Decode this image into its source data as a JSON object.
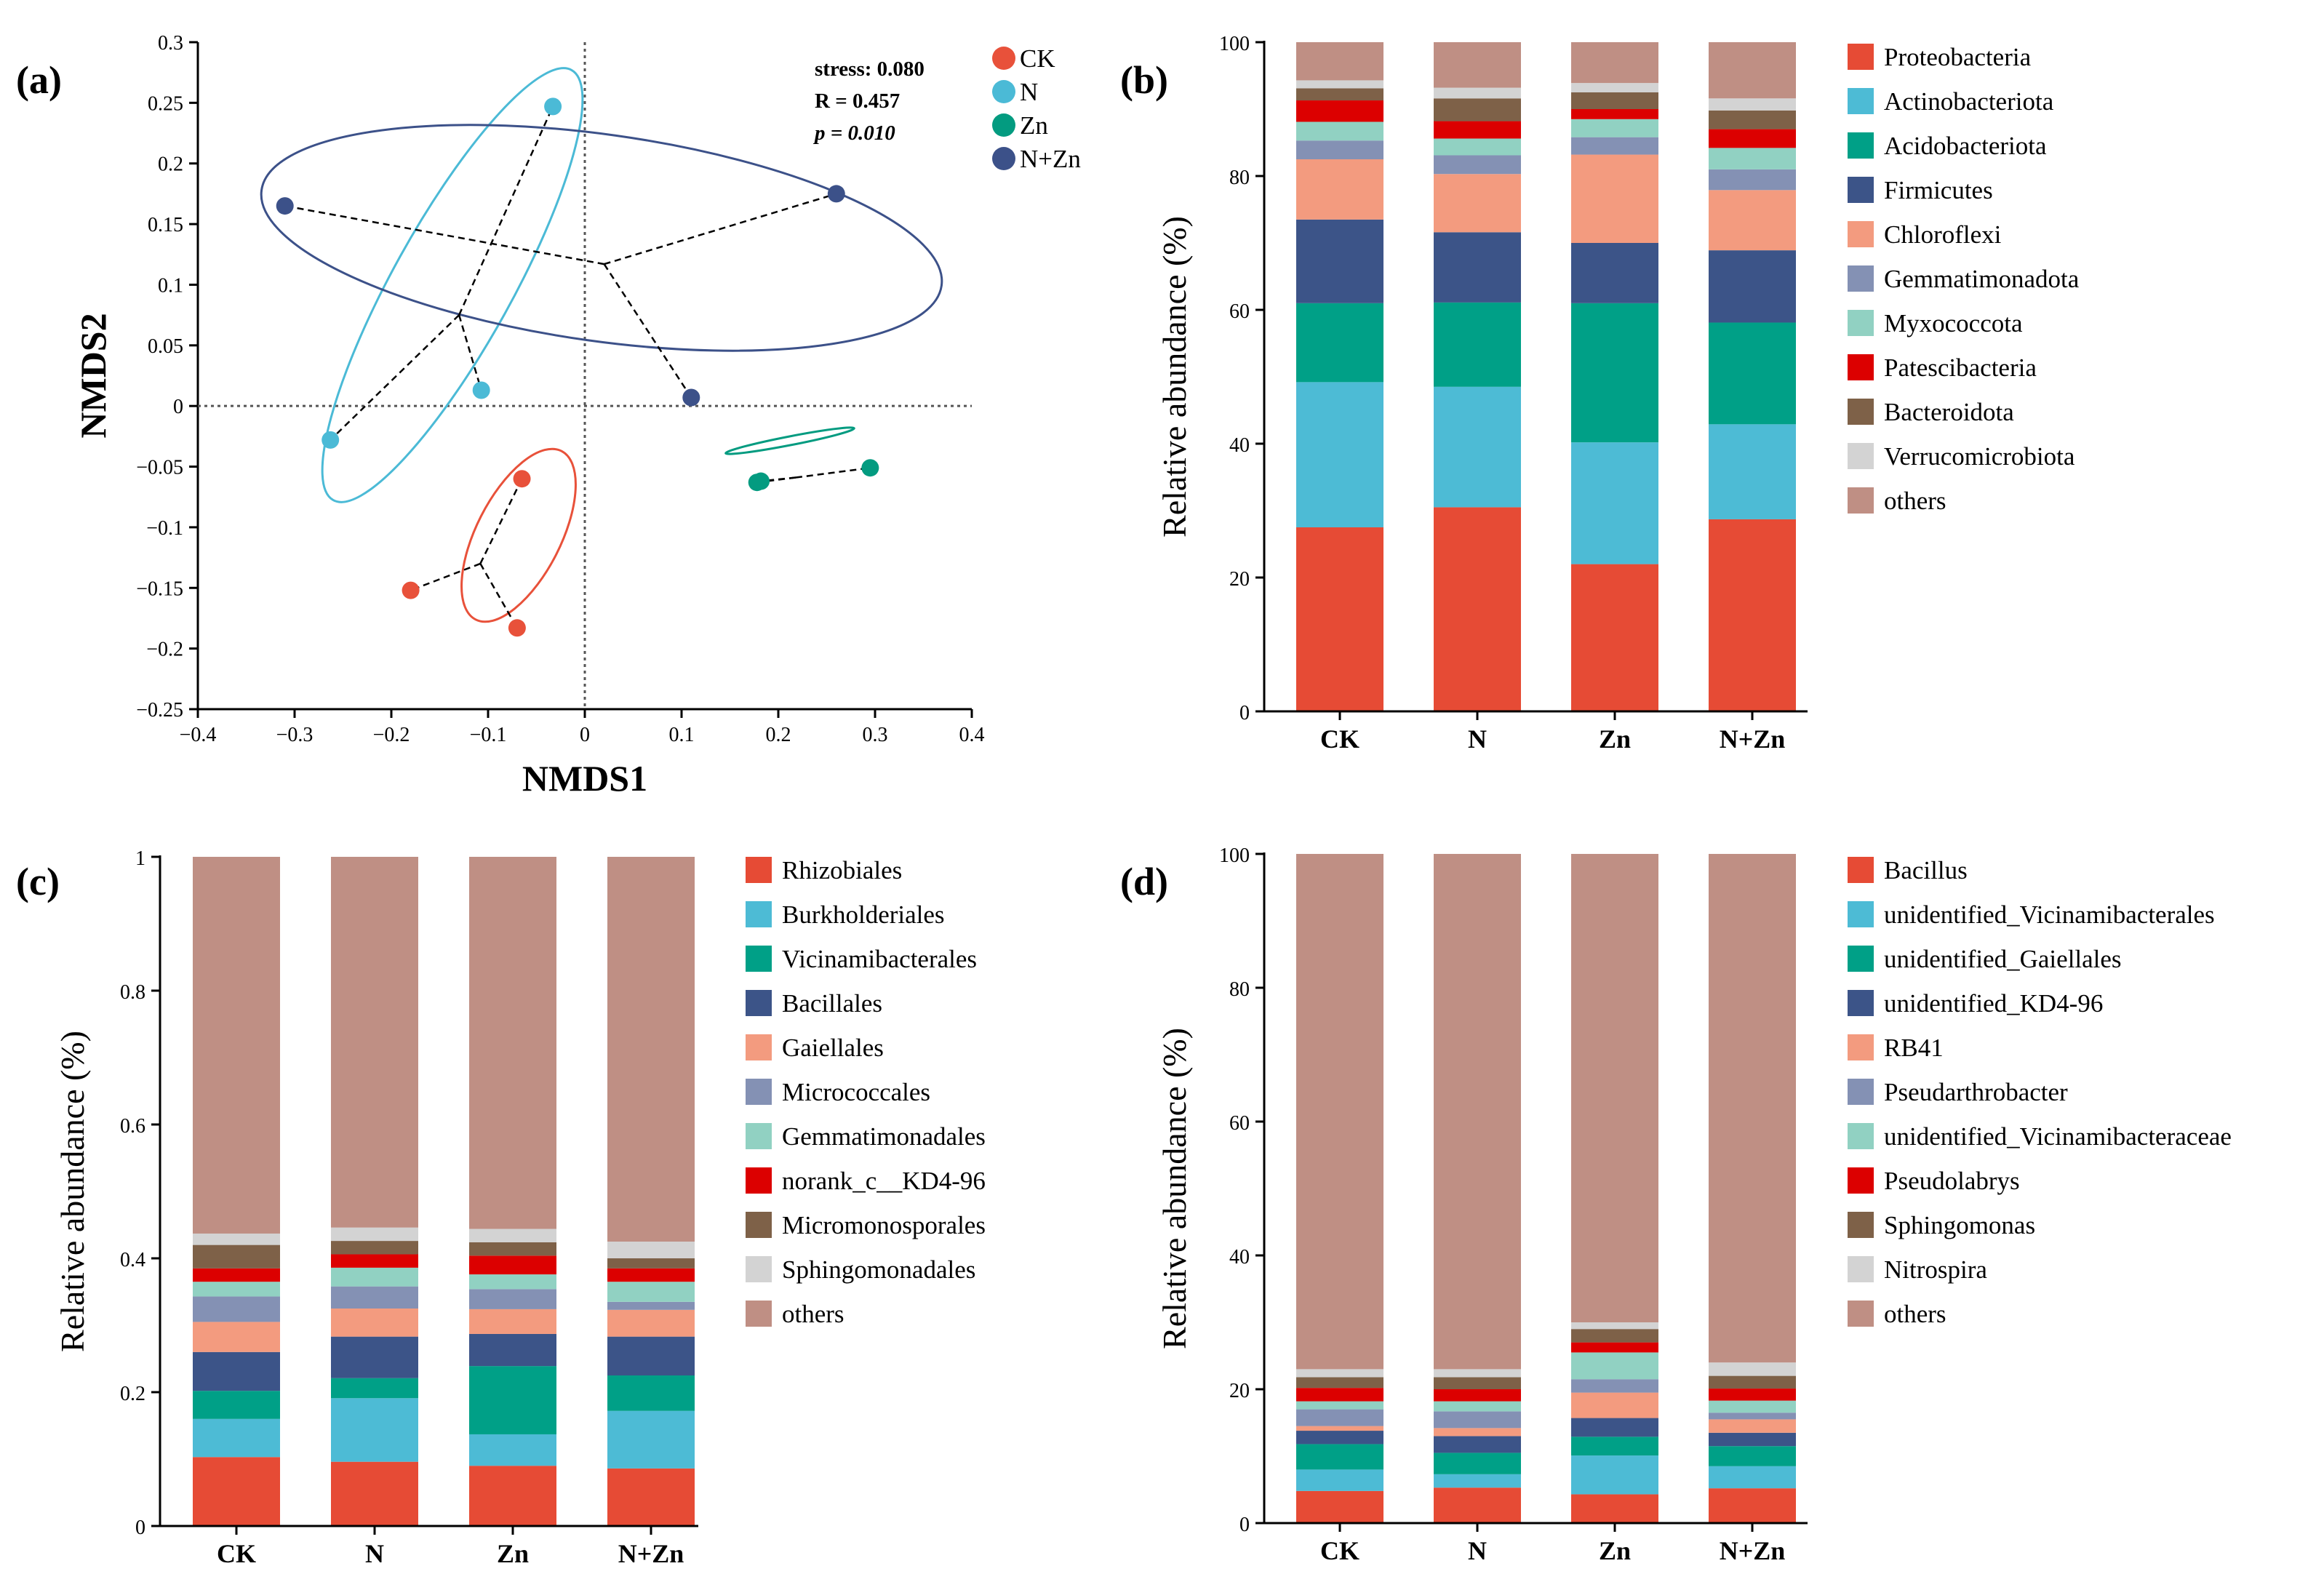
{
  "chart_data": [
    {
      "panel": "(a)",
      "type": "scatter",
      "xlabel": "NMDS1",
      "ylabel": "NMDS2",
      "xlim": [
        -0.4,
        0.4
      ],
      "ylim": [
        -0.25,
        0.3
      ],
      "xticks": [
        "−0.4",
        "−0.3",
        "−0.2",
        "−0.1",
        "0",
        "0.1",
        "0.2",
        "0.3",
        "0.4"
      ],
      "xtick_values": [
        -0.4,
        -0.3,
        -0.2,
        -0.1,
        0,
        0.1,
        0.2,
        0.3,
        0.4
      ],
      "yticks": [
        "0.3",
        "0.25",
        "0.2",
        "0.15",
        "0.1",
        "0.05",
        "0",
        "−0.05",
        "−0.1",
        "−0.15",
        "−0.2",
        "−0.25"
      ],
      "ytick_values": [
        0.3,
        0.25,
        0.2,
        0.15,
        0.1,
        0.05,
        0,
        -0.05,
        -0.1,
        -0.15,
        -0.2,
        -0.25
      ],
      "annotations": [
        "stress: 0.080",
        "R = 0.457",
        "p = 0.010"
      ],
      "series": [
        {
          "name": "CK",
          "color": "#e8513a",
          "points": [
            [
              -0.065,
              -0.06
            ],
            [
              -0.18,
              -0.152
            ],
            [
              -0.07,
              -0.183
            ]
          ],
          "centroid": [
            -0.108,
            -0.13
          ]
        },
        {
          "name": "N",
          "color": "#4bbad6",
          "points": [
            [
              -0.033,
              0.247
            ],
            [
              -0.107,
              0.013
            ],
            [
              -0.263,
              -0.028
            ]
          ],
          "centroid": [
            -0.13,
            0.075
          ]
        },
        {
          "name": "Zn",
          "color": "#039b80",
          "points": [
            [
              0.295,
              -0.051
            ],
            [
              0.178,
              -0.063
            ],
            [
              0.182,
              -0.062
            ]
          ],
          "centroid": [
            0.218,
            -0.059
          ]
        },
        {
          "name": "N+Zn",
          "color": "#3c5189",
          "points": [
            [
              -0.31,
              0.165
            ],
            [
              0.26,
              0.175
            ],
            [
              0.11,
              0.007
            ]
          ],
          "centroid": [
            0.02,
            0.117
          ]
        }
      ]
    },
    {
      "panel": "(b)",
      "type": "bar",
      "stacked": true,
      "ylabel": "Relative abundance (%)",
      "ylim": [
        0,
        100
      ],
      "yticks": [
        "0",
        "20",
        "40",
        "60",
        "80",
        "100"
      ],
      "ytick_values": [
        0,
        20,
        40,
        60,
        80,
        100
      ],
      "categories": [
        "CK",
        "N",
        "Zn",
        "N+Zn"
      ],
      "series": [
        {
          "name": "Proteobacteria",
          "color": "#e64b35",
          "values": [
            27.5,
            30.5,
            22,
            28.7
          ]
        },
        {
          "name": "Actinobacteriota",
          "color": "#4dbbd5",
          "values": [
            21.7,
            18,
            18.2,
            14.2
          ]
        },
        {
          "name": "Acidobacteriota",
          "color": "#00a087",
          "values": [
            11.8,
            12.6,
            20.8,
            15.2
          ]
        },
        {
          "name": "Firmicutes",
          "color": "#3c5488",
          "values": [
            12.5,
            10.5,
            9,
            10.8
          ]
        },
        {
          "name": "Chloroflexi",
          "color": "#f39b7f",
          "values": [
            9,
            8.7,
            13.2,
            9
          ]
        },
        {
          "name": "Gemmatimonadota",
          "color": "#8491b4",
          "values": [
            2.8,
            2.8,
            2.6,
            3.1
          ]
        },
        {
          "name": "Myxococcota",
          "color": "#91d1c2",
          "values": [
            2.8,
            2.5,
            2.7,
            3.2
          ]
        },
        {
          "name": "Patescibacteria",
          "color": "#dc0000",
          "values": [
            3.2,
            2.6,
            1.5,
            2.8
          ]
        },
        {
          "name": "Bacteroidota",
          "color": "#7e6148",
          "values": [
            1.8,
            3.4,
            2.5,
            2.8
          ]
        },
        {
          "name": "Verrucomicrobiota",
          "color": "#d3d3d3",
          "values": [
            1.2,
            1.6,
            1.4,
            1.8
          ]
        },
        {
          "name": "others",
          "color": "#bf8f84",
          "values": [
            5.7,
            6.8,
            6.1,
            8.4
          ]
        }
      ]
    },
    {
      "panel": "(c)",
      "type": "bar",
      "stacked": true,
      "ylabel": "Relative abundance (%)",
      "ylim": [
        0,
        1
      ],
      "yticks": [
        "0",
        "0.2",
        "0.4",
        "0.6",
        "0.8",
        "1"
      ],
      "ytick_values": [
        0,
        0.2,
        0.4,
        0.6,
        0.8,
        1
      ],
      "categories": [
        "CK",
        "N",
        "Zn",
        "N+Zn"
      ],
      "series": [
        {
          "name": "Rhizobiales",
          "color": "#e64b35",
          "values": [
            0.103,
            0.096,
            0.09,
            0.086
          ]
        },
        {
          "name": "Burkholderiales",
          "color": "#4dbbd5",
          "values": [
            0.057,
            0.095,
            0.047,
            0.086
          ]
        },
        {
          "name": "Vicinamibacterales",
          "color": "#00a087",
          "values": [
            0.042,
            0.03,
            0.102,
            0.053
          ]
        },
        {
          "name": "Bacillales",
          "color": "#3c5488",
          "values": [
            0.058,
            0.062,
            0.048,
            0.058
          ]
        },
        {
          "name": "Gaiellales",
          "color": "#f39b7f",
          "values": [
            0.045,
            0.042,
            0.037,
            0.04
          ]
        },
        {
          "name": "Micrococcales",
          "color": "#8491b4",
          "values": [
            0.038,
            0.033,
            0.03,
            0.012
          ]
        },
        {
          "name": "Gemmatimonadales",
          "color": "#91d1c2",
          "values": [
            0.022,
            0.028,
            0.022,
            0.03
          ]
        },
        {
          "name": "norank_c__KD4-96",
          "color": "#dc0000",
          "values": [
            0.02,
            0.02,
            0.028,
            0.02
          ]
        },
        {
          "name": "Micromonosporales",
          "color": "#7e6148",
          "values": [
            0.035,
            0.02,
            0.02,
            0.015
          ]
        },
        {
          "name": "Sphingomonadales",
          "color": "#d3d3d3",
          "values": [
            0.017,
            0.02,
            0.02,
            0.025
          ]
        },
        {
          "name": "others",
          "color": "#bf8f84",
          "values": [
            0.563,
            0.554,
            0.556,
            0.575
          ]
        }
      ]
    },
    {
      "panel": "(d)",
      "type": "bar",
      "stacked": true,
      "ylabel": "Relative abundance (%)",
      "ylim": [
        0,
        100
      ],
      "yticks": [
        "0",
        "20",
        "40",
        "60",
        "80",
        "100"
      ],
      "ytick_values": [
        0,
        20,
        40,
        60,
        80,
        100
      ],
      "categories": [
        "CK",
        "N",
        "Zn",
        "N+Zn"
      ],
      "series": [
        {
          "name": "Bacillus",
          "color": "#e64b35",
          "values": [
            4.8,
            5.3,
            4.3,
            5.2
          ]
        },
        {
          "name": "unidentified_Vicinamibacterales",
          "color": "#4dbbd5",
          "values": [
            3.2,
            2,
            5.8,
            3.3
          ]
        },
        {
          "name": "unidentified_Gaiellales",
          "color": "#00a087",
          "values": [
            3.8,
            3.2,
            2.8,
            3
          ]
        },
        {
          "name": "unidentified_KD4-96",
          "color": "#3c5488",
          "values": [
            2,
            2.5,
            2.8,
            2
          ]
        },
        {
          "name": "RB41",
          "color": "#f39b7f",
          "values": [
            0.7,
            1.2,
            3.8,
            2
          ]
        },
        {
          "name": "Pseudarthrobacter",
          "color": "#8491b4",
          "values": [
            2.5,
            2.5,
            2,
            1
          ]
        },
        {
          "name": "unidentified_Vicinamibacteraceae",
          "color": "#91d1c2",
          "values": [
            1.2,
            1.5,
            4,
            1.8
          ]
        },
        {
          "name": "Pseudolabrys",
          "color": "#dc0000",
          "values": [
            2,
            1.8,
            1.5,
            1.8
          ]
        },
        {
          "name": "Sphingomonas",
          "color": "#7e6148",
          "values": [
            1.6,
            1.8,
            2,
            1.9
          ]
        },
        {
          "name": "Nitrospira",
          "color": "#d3d3d3",
          "values": [
            1.2,
            1.2,
            1,
            2
          ]
        },
        {
          "name": "others",
          "color": "#bf8f84",
          "values": [
            77,
            77,
            70,
            76
          ]
        }
      ]
    }
  ]
}
